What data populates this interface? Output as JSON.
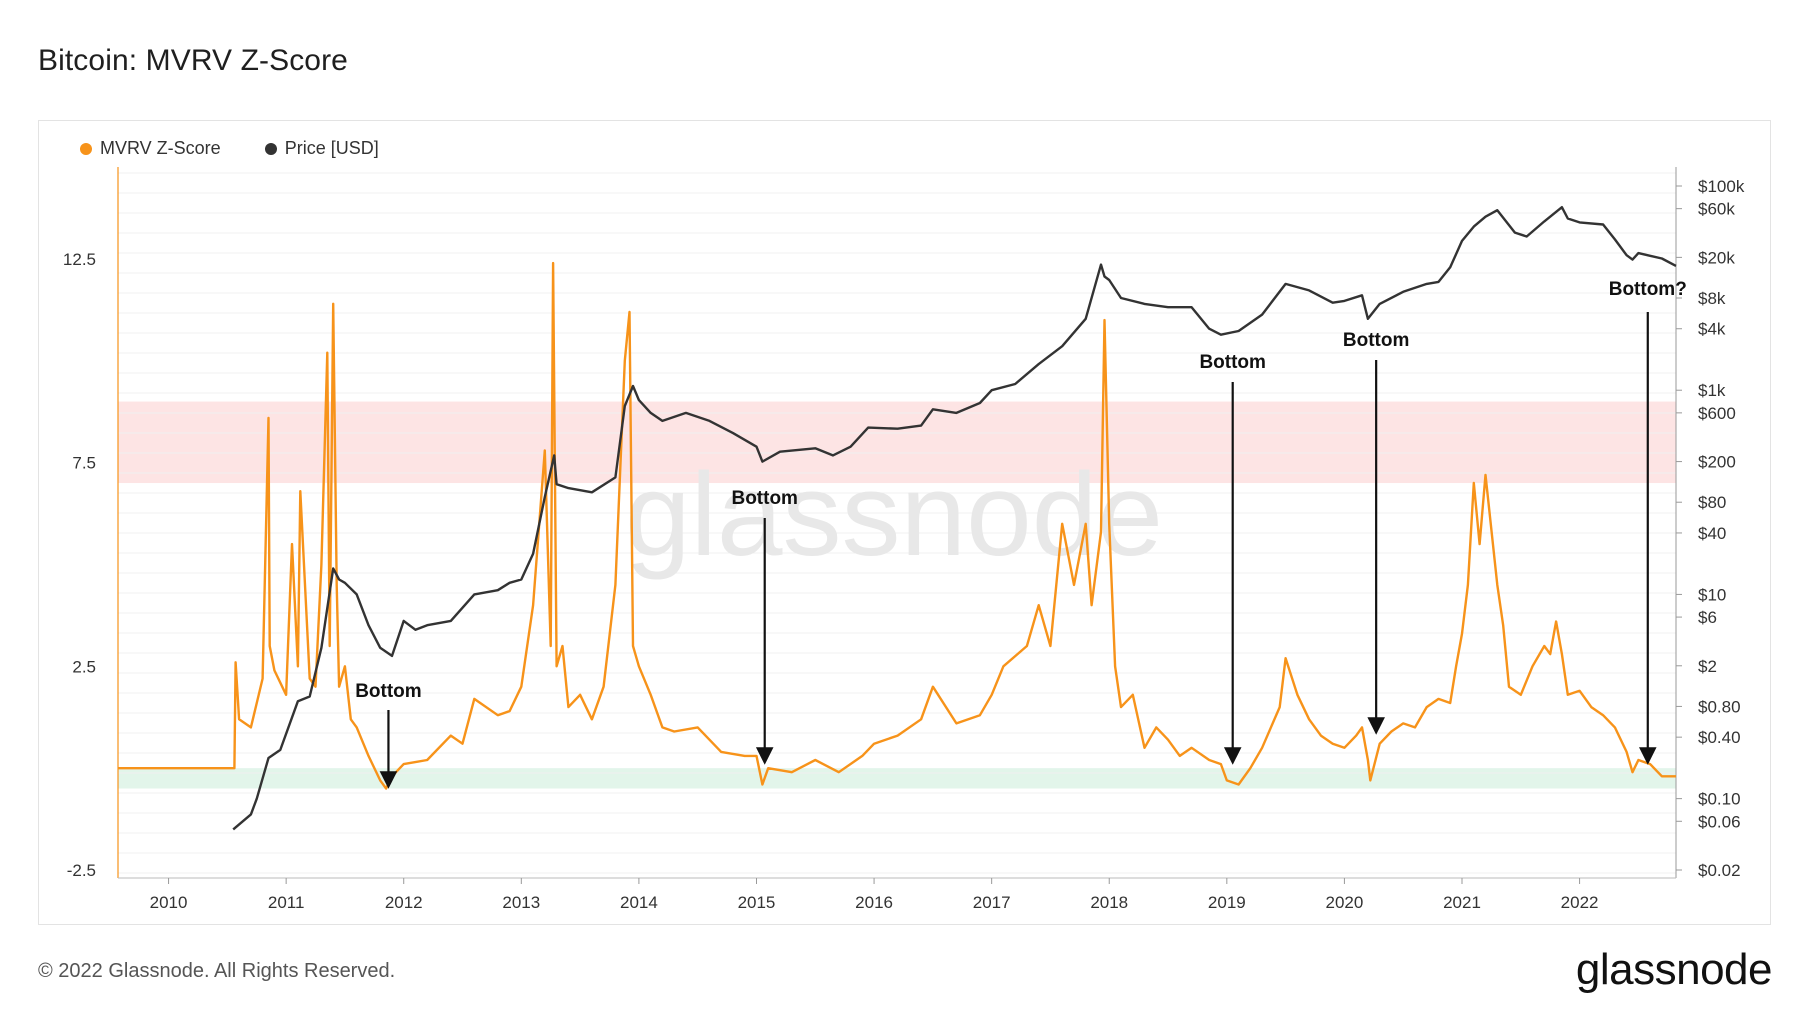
{
  "title": "Bitcoin: MVRV Z-Score",
  "legend": [
    {
      "label": "MVRV Z-Score",
      "color": "#f7931a"
    },
    {
      "label": "Price [USD]",
      "color": "#333333"
    }
  ],
  "watermark": "glassnode",
  "footer": "© 2022 Glassnode. All Rights Reserved.",
  "brand": "glassnode",
  "chart_data": {
    "type": "line",
    "title": "Bitcoin: MVRV Z-Score",
    "left_axis": {
      "ticks": [
        "-2.5",
        "2.5",
        "7.5",
        "12.5"
      ],
      "tick_values": [
        -2.5,
        2.5,
        7.5,
        12.5
      ],
      "range": [
        -2.5,
        15.0
      ]
    },
    "right_axis": {
      "scale": "log",
      "ticks": [
        "$100k",
        "$60k",
        "$20k",
        "$8k",
        "$4k",
        "$1k",
        "$600",
        "$200",
        "$80",
        "$40",
        "$10",
        "$6",
        "$2",
        "$0.80",
        "$0.40",
        "$0.10",
        "$0.06",
        "$0.02"
      ],
      "tick_values": [
        100000,
        60000,
        20000,
        8000,
        4000,
        1000,
        600,
        200,
        80,
        40,
        10,
        6,
        2,
        0.8,
        0.4,
        0.1,
        0.06,
        0.02
      ],
      "range": [
        0.02,
        200000
      ]
    },
    "x_axis": {
      "ticks": [
        "2010",
        "2011",
        "2012",
        "2013",
        "2014",
        "2015",
        "2016",
        "2017",
        "2018",
        "2019",
        "2020",
        "2021",
        "2022"
      ],
      "tick_values": [
        2010,
        2011,
        2012,
        2013,
        2014,
        2015,
        2016,
        2017,
        2018,
        2019,
        2020,
        2021,
        2022
      ],
      "range": [
        2009.57,
        2022.82
      ]
    },
    "bands": [
      {
        "name": "overvalued zone",
        "from": 7.0,
        "to": 9.0,
        "color": "#fde4e4"
      },
      {
        "name": "undervalued zone",
        "from": -0.5,
        "to": 0.0,
        "color": "#e2f5ea"
      }
    ],
    "grid": true,
    "legend_position": "top-left",
    "series": [
      {
        "name": "MVRV Z-Score",
        "color": "#f7931a",
        "axis": "left",
        "x": [
          2009.57,
          2010.56,
          2010.57,
          2010.6,
          2010.7,
          2010.8,
          2010.85,
          2010.86,
          2010.9,
          2011.0,
          2011.05,
          2011.1,
          2011.12,
          2011.2,
          2011.25,
          2011.3,
          2011.35,
          2011.37,
          2011.4,
          2011.43,
          2011.45,
          2011.5,
          2011.55,
          2011.6,
          2011.7,
          2011.8,
          2011.85,
          2011.9,
          2012.0,
          2012.2,
          2012.4,
          2012.5,
          2012.6,
          2012.8,
          2012.9,
          2013.0,
          2013.1,
          2013.2,
          2013.25,
          2013.27,
          2013.3,
          2013.35,
          2013.4,
          2013.5,
          2013.6,
          2013.7,
          2013.8,
          2013.88,
          2013.92,
          2013.95,
          2014.0,
          2014.1,
          2014.2,
          2014.3,
          2014.5,
          2014.7,
          2014.9,
          2015.0,
          2015.05,
          2015.1,
          2015.3,
          2015.5,
          2015.7,
          2015.9,
          2016.0,
          2016.2,
          2016.4,
          2016.5,
          2016.7,
          2016.9,
          2017.0,
          2017.1,
          2017.3,
          2017.4,
          2017.5,
          2017.6,
          2017.7,
          2017.8,
          2017.85,
          2017.93,
          2017.96,
          2018.0,
          2018.05,
          2018.1,
          2018.2,
          2018.3,
          2018.4,
          2018.5,
          2018.6,
          2018.7,
          2018.85,
          2018.95,
          2019.0,
          2019.1,
          2019.2,
          2019.3,
          2019.45,
          2019.5,
          2019.6,
          2019.7,
          2019.8,
          2019.9,
          2020.0,
          2020.1,
          2020.15,
          2020.2,
          2020.22,
          2020.3,
          2020.4,
          2020.5,
          2020.6,
          2020.7,
          2020.8,
          2020.9,
          2020.95,
          2021.0,
          2021.05,
          2021.1,
          2021.15,
          2021.2,
          2021.3,
          2021.35,
          2021.4,
          2021.5,
          2021.6,
          2021.7,
          2021.75,
          2021.8,
          2021.85,
          2021.9,
          2022.0,
          2022.1,
          2022.2,
          2022.3,
          2022.4,
          2022.45,
          2022.5,
          2022.6,
          2022.7,
          2022.82
        ],
        "y": [
          0.0,
          0.0,
          2.6,
          1.2,
          1.0,
          2.2,
          8.6,
          3.0,
          2.4,
          1.8,
          5.5,
          2.5,
          6.8,
          2.2,
          2.0,
          5.0,
          10.2,
          3.0,
          11.4,
          4.5,
          2.0,
          2.5,
          1.2,
          1.0,
          0.3,
          -0.3,
          -0.5,
          -0.2,
          0.1,
          0.2,
          0.8,
          0.6,
          1.7,
          1.3,
          1.4,
          2.0,
          4.0,
          7.8,
          3.0,
          12.4,
          2.5,
          3.0,
          1.5,
          1.8,
          1.2,
          2.0,
          4.5,
          10.0,
          11.2,
          3.0,
          2.5,
          1.8,
          1.0,
          0.9,
          1.0,
          0.4,
          0.3,
          0.3,
          -0.4,
          0.0,
          -0.1,
          0.2,
          -0.1,
          0.3,
          0.6,
          0.8,
          1.2,
          2.0,
          1.1,
          1.3,
          1.8,
          2.5,
          3.0,
          4.0,
          3.0,
          6.0,
          4.5,
          6.0,
          4.0,
          5.8,
          11.0,
          6.0,
          2.5,
          1.5,
          1.8,
          0.5,
          1.0,
          0.7,
          0.3,
          0.5,
          0.2,
          0.1,
          -0.3,
          -0.4,
          0.0,
          0.5,
          1.5,
          2.7,
          1.8,
          1.2,
          0.8,
          0.6,
          0.5,
          0.8,
          1.0,
          0.2,
          -0.3,
          0.6,
          0.9,
          1.1,
          1.0,
          1.5,
          1.7,
          1.6,
          2.5,
          3.3,
          4.5,
          7.0,
          5.5,
          7.2,
          4.5,
          3.5,
          2.0,
          1.8,
          2.5,
          3.0,
          2.8,
          3.6,
          2.8,
          1.8,
          1.9,
          1.5,
          1.3,
          1.0,
          0.4,
          -0.1,
          0.2,
          0.1,
          -0.2,
          -0.2
        ]
      },
      {
        "name": "Price [USD]",
        "color": "#333333",
        "axis": "right",
        "x": [
          2010.55,
          2010.7,
          2010.75,
          2010.85,
          2010.95,
          2011.1,
          2011.2,
          2011.3,
          2011.4,
          2011.45,
          2011.5,
          2011.6,
          2011.7,
          2011.8,
          2011.9,
          2012.0,
          2012.1,
          2012.2,
          2012.4,
          2012.6,
          2012.8,
          2012.9,
          2013.0,
          2013.1,
          2013.2,
          2013.28,
          2013.3,
          2013.4,
          2013.6,
          2013.8,
          2013.88,
          2013.95,
          2014.0,
          2014.1,
          2014.2,
          2014.4,
          2014.6,
          2014.8,
          2015.0,
          2015.05,
          2015.2,
          2015.5,
          2015.65,
          2015.8,
          2015.95,
          2016.2,
          2016.4,
          2016.5,
          2016.7,
          2016.9,
          2017.0,
          2017.2,
          2017.4,
          2017.6,
          2017.8,
          2017.93,
          2017.96,
          2018.0,
          2018.1,
          2018.3,
          2018.5,
          2018.7,
          2018.85,
          2018.95,
          2019.1,
          2019.3,
          2019.5,
          2019.7,
          2019.9,
          2020.0,
          2020.15,
          2020.2,
          2020.3,
          2020.5,
          2020.7,
          2020.8,
          2020.9,
          2021.0,
          2021.1,
          2021.2,
          2021.3,
          2021.45,
          2021.55,
          2021.7,
          2021.85,
          2021.9,
          2022.0,
          2022.2,
          2022.3,
          2022.4,
          2022.45,
          2022.5,
          2022.7,
          2022.82
        ],
        "y": [
          0.05,
          0.07,
          0.1,
          0.25,
          0.3,
          0.9,
          1.0,
          3.0,
          18.0,
          14.0,
          13.0,
          10.0,
          5.0,
          3.0,
          2.5,
          5.5,
          4.5,
          5.0,
          5.5,
          10.0,
          11.0,
          13.0,
          14.0,
          25.0,
          90.0,
          230.0,
          120.0,
          110.0,
          100.0,
          140.0,
          700.0,
          1100.0,
          800.0,
          600.0,
          500.0,
          600.0,
          500.0,
          380.0,
          280.0,
          200.0,
          250.0,
          270.0,
          230.0,
          280.0,
          430.0,
          420.0,
          450.0,
          650.0,
          600.0,
          750.0,
          1000.0,
          1150.0,
          1800.0,
          2700.0,
          5000.0,
          17000.0,
          13000.0,
          12000.0,
          8000.0,
          7000.0,
          6500.0,
          6500.0,
          4000.0,
          3500.0,
          3800.0,
          5500.0,
          11000.0,
          9500.0,
          7200.0,
          7500.0,
          8500.0,
          5000.0,
          7000.0,
          9200.0,
          11000.0,
          11500.0,
          16000.0,
          29000.0,
          40000.0,
          50000.0,
          58000.0,
          35000.0,
          32000.0,
          45000.0,
          62000.0,
          48000.0,
          44000.0,
          42000.0,
          30000.0,
          21000.0,
          19000.0,
          22000.0,
          19500.0,
          16500.0
        ]
      }
    ],
    "annotations": [
      {
        "text": "Bottom",
        "x": 2011.87
      },
      {
        "text": "Bottom",
        "x": 2015.07
      },
      {
        "text": "Bottom",
        "x": 2019.05
      },
      {
        "text": "Bottom",
        "x": 2020.27
      },
      {
        "text": "Bottom?",
        "x": 2022.58
      }
    ]
  }
}
